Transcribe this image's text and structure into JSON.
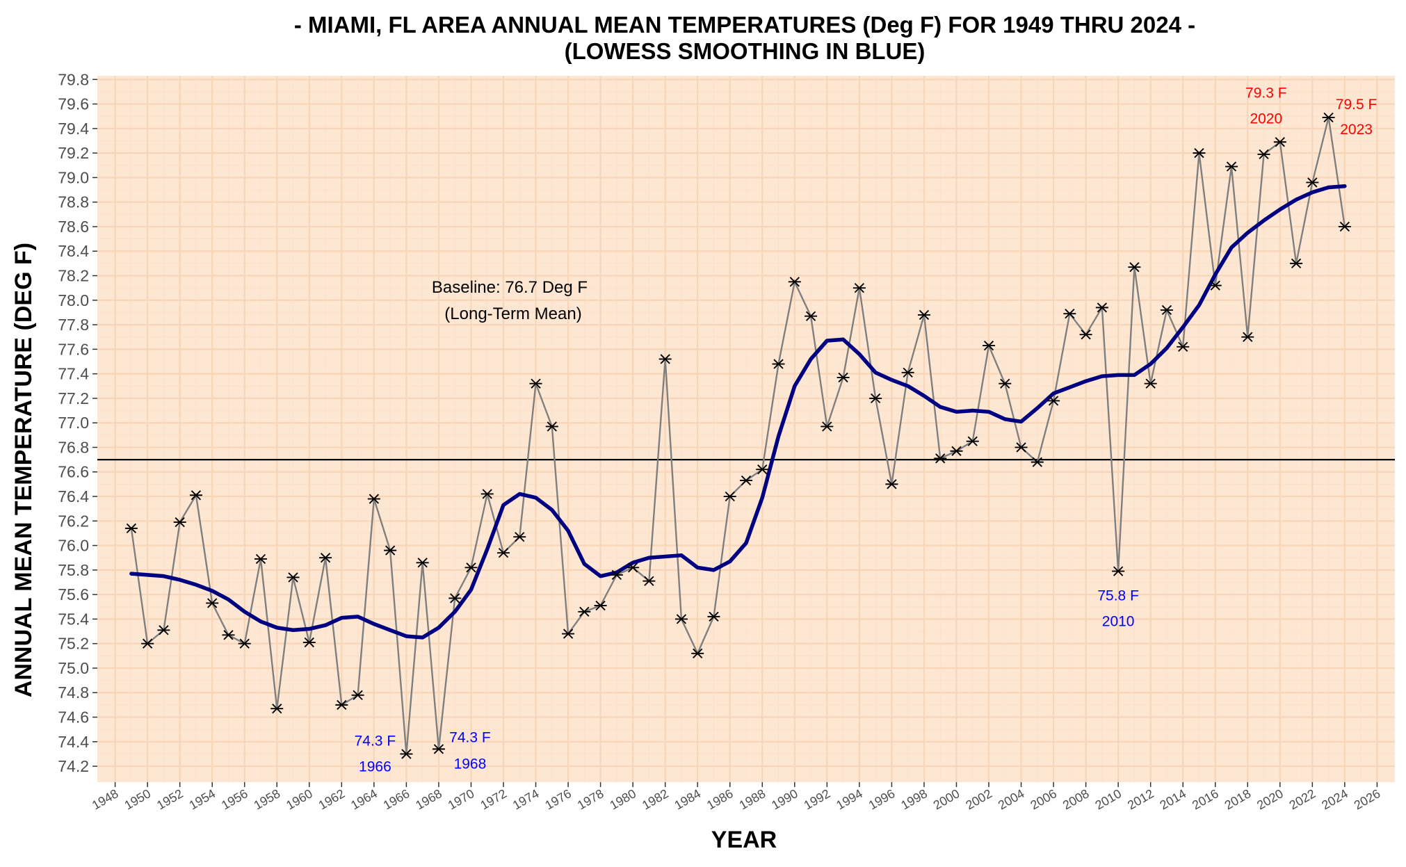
{
  "chart_data": {
    "type": "line",
    "title": [
      "- MIAMI, FL AREA ANNUAL MEAN TEMPERATURES (Deg F) FOR 1949 THRU 2024 -",
      "(LOWESS SMOOTHING IN BLUE)"
    ],
    "xlabel": "YEAR",
    "ylabel": "ANNUAL MEAN TEMPERATURE (DEG F)",
    "xlim": [
      1946.9,
      2027.1
    ],
    "ylim": [
      74.07,
      79.83
    ],
    "x_ticks": [
      1948,
      1950,
      1952,
      1954,
      1956,
      1958,
      1960,
      1962,
      1964,
      1966,
      1968,
      1970,
      1972,
      1974,
      1976,
      1978,
      1980,
      1982,
      1984,
      1986,
      1988,
      1990,
      1992,
      1994,
      1996,
      1998,
      2000,
      2002,
      2004,
      2006,
      2008,
      2010,
      2012,
      2014,
      2016,
      2018,
      2020,
      2022,
      2024,
      2026
    ],
    "y_ticks": [
      74.2,
      74.4,
      74.6,
      74.8,
      75.0,
      75.2,
      75.4,
      75.6,
      75.8,
      76.0,
      76.2,
      76.4,
      76.6,
      76.8,
      77.0,
      77.2,
      77.4,
      77.6,
      77.8,
      78.0,
      78.2,
      78.4,
      78.6,
      78.8,
      79.0,
      79.2,
      79.4,
      79.6,
      79.8
    ],
    "grid": true,
    "colors": {
      "panel_bg": "#fde7d3",
      "major_grid": "#f8d5b6",
      "minor_grid": "#fbe0c9",
      "raw_line": "#7f7f7f",
      "smooth_line": "#000080",
      "point": "#000000",
      "baseline": "#000000",
      "low_label": "#0000ff",
      "high_label": "#ff0000"
    },
    "series": [
      {
        "x": [
          1949,
          1950,
          1951,
          1952,
          1953,
          1954,
          1955,
          1956,
          1957,
          1958,
          1959,
          1960,
          1961,
          1962,
          1963,
          1964,
          1965,
          1966,
          1967,
          1968,
          1969,
          1970,
          1971,
          1972,
          1973,
          1974,
          1975,
          1976,
          1977,
          1978,
          1979,
          1980,
          1981,
          1982,
          1983,
          1984,
          1985,
          1986,
          1987,
          1988,
          1989,
          1990,
          1991,
          1992,
          1993,
          1994,
          1995,
          1996,
          1997,
          1998,
          1999,
          2000,
          2001,
          2002,
          2003,
          2004,
          2005,
          2006,
          2007,
          2008,
          2009,
          2010,
          2011,
          2012,
          2013,
          2014,
          2015,
          2016,
          2017,
          2018,
          2019,
          2020,
          2021,
          2022,
          2023,
          2024
        ],
        "values": [
          76.14,
          75.2,
          75.31,
          76.19,
          76.41,
          75.53,
          75.27,
          75.2,
          75.89,
          74.67,
          75.74,
          75.21,
          75.9,
          74.7,
          74.78,
          76.38,
          75.96,
          74.3,
          75.86,
          74.34,
          75.57,
          75.82,
          76.42,
          75.94,
          76.07,
          77.32,
          76.97,
          75.28,
          75.46,
          75.51,
          75.76,
          75.82,
          75.71,
          77.52,
          75.4,
          75.12,
          75.42,
          76.4,
          76.53,
          76.62,
          77.48,
          78.15,
          77.87,
          76.97,
          77.37,
          78.1,
          77.2,
          76.5,
          77.41,
          77.88,
          76.71,
          76.77,
          76.85,
          77.63,
          77.32,
          76.8,
          76.68,
          77.18,
          77.89,
          77.72,
          77.94,
          75.79,
          78.27,
          77.32,
          77.92,
          77.62,
          79.2,
          78.12,
          79.09,
          77.7,
          79.19,
          79.29,
          78.3,
          78.96,
          79.49,
          78.6
        ]
      },
      {
        "x": [
          1949,
          1950,
          1951,
          1952,
          1953,
          1954,
          1955,
          1956,
          1957,
          1958,
          1959,
          1960,
          1961,
          1962,
          1963,
          1964,
          1965,
          1966,
          1967,
          1968,
          1969,
          1970,
          1971,
          1972,
          1973,
          1974,
          1975,
          1976,
          1977,
          1978,
          1979,
          1980,
          1981,
          1982,
          1983,
          1984,
          1985,
          1986,
          1987,
          1988,
          1989,
          1990,
          1991,
          1992,
          1993,
          1994,
          1995,
          1996,
          1997,
          1998,
          1999,
          2000,
          2001,
          2002,
          2003,
          2004,
          2005,
          2006,
          2007,
          2008,
          2009,
          2010,
          2011,
          2012,
          2013,
          2014,
          2015,
          2016,
          2017,
          2018,
          2019,
          2020,
          2021,
          2022,
          2023,
          2024
        ],
        "values": [
          75.77,
          75.76,
          75.75,
          75.72,
          75.68,
          75.63,
          75.56,
          75.46,
          75.38,
          75.33,
          75.31,
          75.32,
          75.35,
          75.41,
          75.42,
          75.36,
          75.31,
          75.26,
          75.25,
          75.33,
          75.46,
          75.64,
          75.97,
          76.33,
          76.42,
          76.39,
          76.29,
          76.12,
          75.85,
          75.75,
          75.78,
          75.86,
          75.9,
          75.91,
          75.92,
          75.82,
          75.8,
          75.87,
          76.02,
          76.39,
          76.89,
          77.3,
          77.52,
          77.67,
          77.68,
          77.56,
          77.41,
          77.35,
          77.3,
          77.22,
          77.13,
          77.09,
          77.1,
          77.09,
          77.03,
          77.01,
          77.12,
          77.24,
          77.29,
          77.34,
          77.38,
          77.39,
          77.39,
          77.48,
          77.61,
          77.78,
          77.96,
          78.21,
          78.43,
          78.55,
          78.65,
          78.74,
          78.82,
          78.88,
          78.92,
          78.93
        ]
      }
    ],
    "baseline": {
      "y": 76.7,
      "label_line1": "Baseline: 76.7 Deg F",
      "label_line2": "(Long-Term Mean)"
    },
    "annotations": [
      {
        "x": 1966,
        "y": 74.3,
        "line1": "74.3 F",
        "line2": "1966",
        "kind": "low",
        "side": "left"
      },
      {
        "x": 1968,
        "y": 74.34,
        "line1": "74.3 F",
        "line2": "1968",
        "kind": "low",
        "side": "right"
      },
      {
        "x": 2010,
        "y": 75.79,
        "line1": "75.8 F",
        "line2": "2010",
        "kind": "low",
        "side": "below"
      },
      {
        "x": 2020,
        "y": 79.29,
        "line1": "79.3 F",
        "line2": "2020",
        "kind": "high",
        "side": "above-left"
      },
      {
        "x": 2023,
        "y": 79.49,
        "line1": "79.5 F",
        "line2": "2023",
        "kind": "high",
        "side": "right"
      }
    ]
  }
}
